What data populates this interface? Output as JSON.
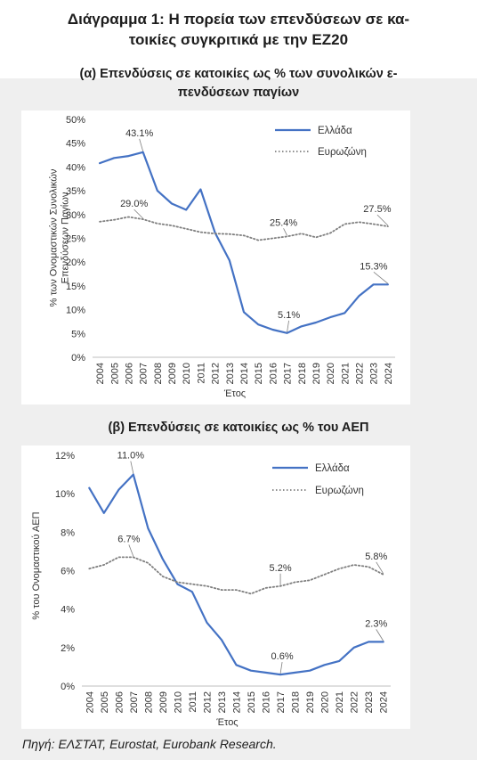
{
  "header": {
    "title_line1": "Διάγραμμα 1: Η πορεία των επενδύσεων σε κα-",
    "title_line2": "τοικίες συγκριτικά με την ΕΖ20"
  },
  "source": "Πηγή: ΕΛΣΤΑΤ, Eurostat, Eurobank Research.",
  "colors": {
    "greece": "#4472c4",
    "eurozone": "#7f7f7f",
    "background_band": "#efefef"
  },
  "chart_data": [
    {
      "type": "line",
      "title_line1": "(α) Επενδύσεις σε κατοικίες ως % των συνολικών ε-",
      "title_line2": "πενδύσεων παγίων",
      "xlabel": "Έτος",
      "ylabel_line1": "% των Ονομαστικών Συνολικών",
      "ylabel_line2": "Επενδύσεων Παγίων",
      "ylim": [
        0,
        50
      ],
      "yticks": [
        "0%",
        "5%",
        "10%",
        "15%",
        "20%",
        "25%",
        "30%",
        "35%",
        "40%",
        "45%",
        "50%"
      ],
      "x": [
        "2004",
        "2005",
        "2006",
        "2007",
        "2008",
        "2009",
        "2010",
        "2011",
        "2012",
        "2013",
        "2014",
        "2015",
        "2016",
        "2017",
        "2018",
        "2019",
        "2020",
        "2021",
        "2022",
        "2023",
        "2024"
      ],
      "series": [
        {
          "name": "Ελλάδα",
          "style": "solid",
          "values": [
            40.8,
            41.9,
            42.3,
            43.1,
            35.0,
            32.3,
            31.0,
            35.3,
            26.2,
            20.4,
            9.5,
            6.9,
            5.8,
            5.1,
            6.5,
            7.3,
            8.4,
            9.3,
            12.9,
            15.3,
            15.3
          ]
        },
        {
          "name": "Ευρωζώνη",
          "style": "dotted",
          "values": [
            28.5,
            28.9,
            29.5,
            29.0,
            28.1,
            27.7,
            27.0,
            26.3,
            26.0,
            25.9,
            25.6,
            24.6,
            25.0,
            25.4,
            26.0,
            25.2,
            26.1,
            28.0,
            28.4,
            28.0,
            27.5
          ]
        }
      ],
      "annotations": [
        {
          "text": "43.1%",
          "series": 0,
          "index": 3
        },
        {
          "text": "29.0%",
          "series": 1,
          "index": 3
        },
        {
          "text": "25.4%",
          "series": 1,
          "index": 13
        },
        {
          "text": "5.1%",
          "series": 0,
          "index": 13
        },
        {
          "text": "27.5%",
          "series": 1,
          "index": 20
        },
        {
          "text": "15.3%",
          "series": 0,
          "index": 20
        }
      ],
      "legend_position": "top-right"
    },
    {
      "type": "line",
      "title_line1": "(β) Επενδύσεις σε κατοικίες ως % του ΑΕΠ",
      "xlabel": "Έτος",
      "ylabel_line1": "% του Ονομαστικού ΑΕΠ",
      "ylim": [
        0,
        12
      ],
      "yticks": [
        "0%",
        "2%",
        "4%",
        "6%",
        "8%",
        "10%",
        "12%"
      ],
      "x": [
        "2004",
        "2005",
        "2006",
        "2007",
        "2008",
        "2009",
        "2010",
        "2011",
        "2012",
        "2013",
        "2014",
        "2015",
        "2016",
        "2017",
        "2018",
        "2019",
        "2020",
        "2021",
        "2022",
        "2023",
        "2024"
      ],
      "series": [
        {
          "name": "Ελλάδα",
          "style": "solid",
          "values": [
            10.3,
            9.0,
            10.2,
            11.0,
            8.2,
            6.6,
            5.3,
            4.9,
            3.3,
            2.4,
            1.1,
            0.8,
            0.7,
            0.6,
            0.7,
            0.8,
            1.1,
            1.3,
            2.0,
            2.3,
            2.3
          ]
        },
        {
          "name": "Ευρωζώνη",
          "style": "dotted",
          "values": [
            6.1,
            6.3,
            6.7,
            6.7,
            6.4,
            5.7,
            5.4,
            5.3,
            5.2,
            5.0,
            5.0,
            4.8,
            5.1,
            5.2,
            5.4,
            5.5,
            5.8,
            6.1,
            6.3,
            6.2,
            5.8
          ]
        }
      ],
      "annotations": [
        {
          "text": "11.0%",
          "series": 0,
          "index": 3
        },
        {
          "text": "6.7%",
          "series": 1,
          "index": 3
        },
        {
          "text": "5.2%",
          "series": 1,
          "index": 13
        },
        {
          "text": "0.6%",
          "series": 0,
          "index": 13
        },
        {
          "text": "5.8%",
          "series": 1,
          "index": 20
        },
        {
          "text": "2.3%",
          "series": 0,
          "index": 20
        }
      ],
      "legend_position": "top-right"
    }
  ]
}
